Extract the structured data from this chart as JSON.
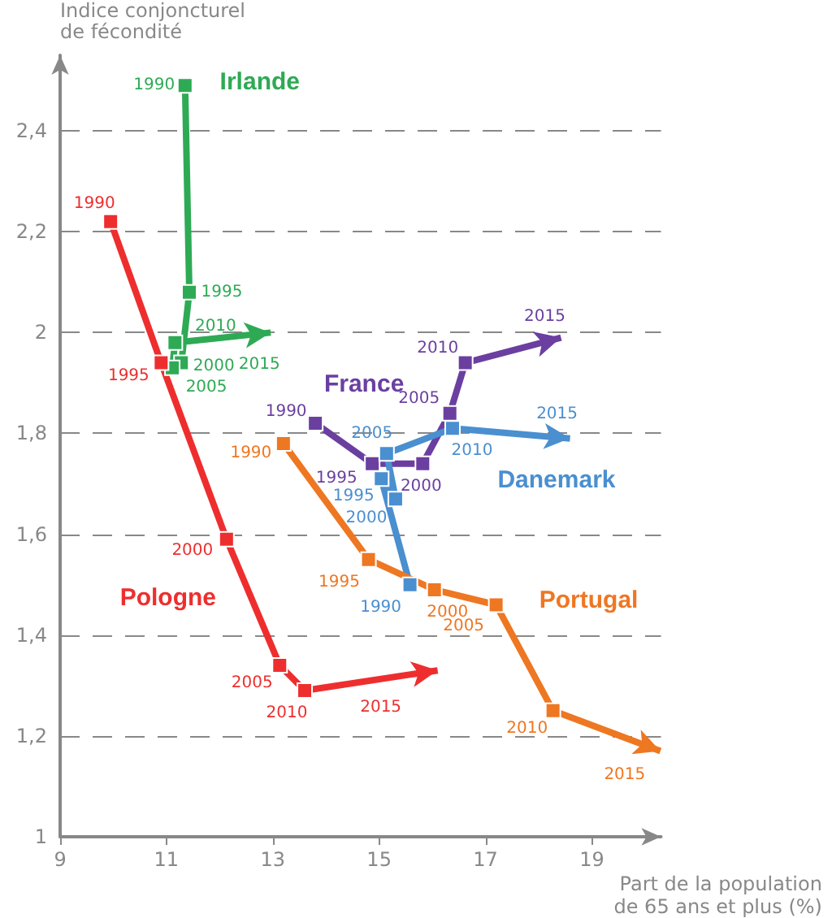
{
  "chart_data": {
    "type": "line",
    "xlabel": "Part de la population de 65 ans et plus (%)",
    "ylabel": "Indice conjoncturel de fécondité",
    "xlim": [
      9,
      20.3
    ],
    "xticks": [
      9,
      11,
      13,
      15,
      17,
      19
    ],
    "ylim": [
      1,
      2.55
    ],
    "yticks": [
      1,
      {
        "value": 1.2,
        "label": "1,2"
      },
      {
        "value": 1.4,
        "label": "1,4"
      },
      {
        "value": 1.6,
        "label": "1,6"
      },
      {
        "value": 1.8,
        "label": "1,8"
      },
      2,
      {
        "value": 2.2,
        "label": "2,2"
      },
      {
        "value": 2.4,
        "label": "2,4"
      }
    ],
    "grid": "y",
    "marker": "square",
    "line_style": "solid",
    "series": [
      {
        "name": "Irlande",
        "color": "#2eaa55",
        "x": [
          11.35,
          11.43,
          11.28,
          11.11,
          11.16,
          12.96
        ],
        "values": [
          2.49,
          2.08,
          1.94,
          1.93,
          1.98,
          2.0
        ]
      },
      {
        "name": "Pologne",
        "color": "#ee2e2e",
        "x": [
          9.95,
          10.9,
          12.13,
          13.13,
          13.6,
          16.1
        ],
        "values": [
          2.22,
          1.94,
          1.59,
          1.34,
          1.29,
          1.33
        ]
      },
      {
        "name": "France",
        "color": "#6b3fa0",
        "x": [
          13.8,
          14.87,
          15.82,
          16.33,
          16.62,
          18.42
        ],
        "values": [
          1.82,
          1.74,
          1.74,
          1.84,
          1.94,
          1.99
        ]
      },
      {
        "name": "Danemark",
        "color": "#4a8fd0",
        "x": [
          15.58,
          15.04,
          15.31,
          15.14,
          16.38,
          18.59
        ],
        "values": [
          1.5,
          1.71,
          1.67,
          1.76,
          1.81,
          1.79
        ]
      },
      {
        "name": "Portugal",
        "color": "#ee7722",
        "x": [
          13.2,
          14.8,
          16.04,
          17.2,
          18.27,
          20.29
        ],
        "values": [
          1.78,
          1.55,
          1.49,
          1.46,
          1.25,
          1.17
        ]
      }
    ],
    "annotations": [
      {
        "text": "1990",
        "x": 11.35,
        "y": 2.49
      },
      {
        "text": "1995",
        "x": 11.43,
        "y": 2.08
      },
      {
        "text": "2000",
        "x": 11.28,
        "y": 1.94
      },
      {
        "text": "2005",
        "x": 11.11,
        "y": 1.93
      },
      {
        "text": "2010",
        "x": 11.16,
        "y": 1.98
      },
      {
        "text": "2015",
        "x": 12.96,
        "y": 2.0
      },
      {
        "text": "1990",
        "x": 9.95,
        "y": 2.22
      },
      {
        "text": "1995",
        "x": 10.9,
        "y": 1.94
      },
      {
        "text": "2000",
        "x": 12.13,
        "y": 1.59
      },
      {
        "text": "2005",
        "x": 13.13,
        "y": 1.34
      },
      {
        "text": "2010",
        "x": 13.6,
        "y": 1.29
      },
      {
        "text": "2015",
        "x": 16.1,
        "y": 1.33
      },
      {
        "text": "1990",
        "x": 13.8,
        "y": 1.82
      },
      {
        "text": "1995",
        "x": 14.87,
        "y": 1.74
      },
      {
        "text": "2000",
        "x": 15.82,
        "y": 1.74
      },
      {
        "text": "2005",
        "x": 16.33,
        "y": 1.84
      },
      {
        "text": "2010",
        "x": 16.62,
        "y": 1.94
      },
      {
        "text": "2015",
        "x": 18.42,
        "y": 1.99
      },
      {
        "text": "1990",
        "x": 15.58,
        "y": 1.5
      },
      {
        "text": "1995",
        "x": 15.04,
        "y": 1.71
      },
      {
        "text": "2000",
        "x": 15.31,
        "y": 1.67
      },
      {
        "text": "2005",
        "x": 15.14,
        "y": 1.76
      },
      {
        "text": "2010",
        "x": 16.38,
        "y": 1.81
      },
      {
        "text": "2015",
        "x": 18.59,
        "y": 1.79
      },
      {
        "text": "1990",
        "x": 13.2,
        "y": 1.78
      },
      {
        "text": "1995",
        "x": 14.8,
        "y": 1.55
      },
      {
        "text": "2000",
        "x": 16.04,
        "y": 1.49
      },
      {
        "text": "2005",
        "x": 17.2,
        "y": 1.46
      },
      {
        "text": "2010",
        "x": 18.27,
        "y": 1.25
      },
      {
        "text": "2015",
        "x": 20.29,
        "y": 1.17
      }
    ]
  }
}
